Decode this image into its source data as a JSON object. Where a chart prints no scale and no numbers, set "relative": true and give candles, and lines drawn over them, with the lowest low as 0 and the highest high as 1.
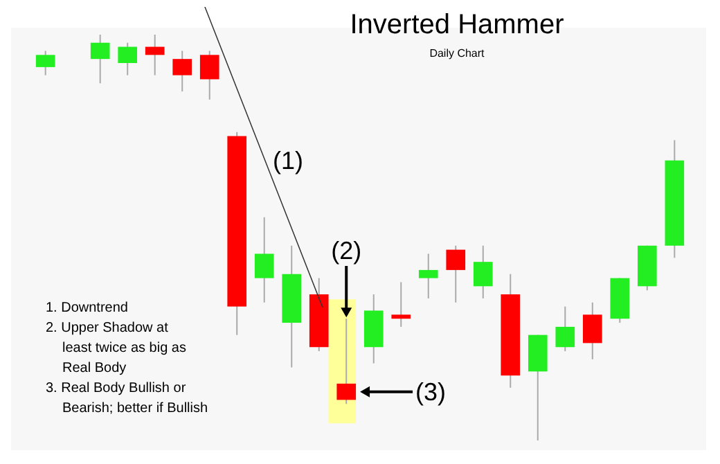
{
  "chart_data": {
    "type": "candlestick",
    "title": "Inverted Hammer",
    "subtitle": "Daily Chart",
    "relative": true,
    "categories": [
      null,
      null,
      null,
      null,
      null,
      null,
      null,
      null,
      null,
      null,
      null,
      null,
      null,
      null,
      null,
      null,
      null,
      null,
      null,
      null,
      null,
      null,
      null,
      null
    ],
    "ohlc": [
      [
        0.92,
        0.96,
        0.9,
        0.95
      ],
      null,
      [
        0.94,
        1.0,
        0.88,
        0.98
      ],
      [
        0.93,
        0.98,
        0.9,
        0.97
      ],
      [
        0.97,
        1.0,
        0.9,
        0.95
      ],
      [
        0.94,
        0.96,
        0.86,
        0.9
      ],
      [
        0.95,
        0.96,
        0.84,
        0.89
      ],
      [
        0.75,
        0.76,
        0.26,
        0.33
      ],
      [
        0.4,
        0.55,
        0.34,
        0.46
      ],
      [
        0.29,
        0.48,
        0.18,
        0.41
      ],
      [
        0.36,
        0.4,
        0.22,
        0.23
      ],
      [
        0.14,
        0.3,
        0.09,
        0.1
      ],
      [
        0.23,
        0.36,
        0.19,
        0.32
      ],
      [
        0.31,
        0.39,
        0.28,
        0.3
      ],
      [
        0.4,
        0.46,
        0.35,
        0.42
      ],
      [
        0.47,
        0.48,
        0.34,
        0.42
      ],
      [
        0.38,
        0.48,
        0.35,
        0.44
      ],
      [
        0.36,
        0.41,
        0.13,
        0.16
      ],
      [
        0.17,
        0.26,
        0.0,
        0.26
      ],
      [
        0.23,
        0.33,
        0.22,
        0.28
      ],
      [
        0.31,
        0.34,
        0.2,
        0.24
      ],
      [
        0.3,
        0.4,
        0.29,
        0.4
      ],
      [
        0.38,
        0.48,
        0.37,
        0.48
      ],
      [
        0.48,
        0.74,
        0.45,
        0.69
      ]
    ],
    "colors": [
      "#22ee22",
      null,
      "#22ee22",
      "#22ee22",
      "#ff0000",
      "#ff0000",
      "#ff0000",
      "#ff0000",
      "#22ee22",
      "#22ee22",
      "#ff0000",
      "#ff0000",
      "#22ee22",
      "#ff0000",
      "#22ee22",
      "#ff0000",
      "#22ee22",
      "#ff0000",
      "#22ee22",
      "#22ee22",
      "#ff0000",
      "#22ee22",
      "#22ee22",
      "#22ee22"
    ],
    "annotations": [
      "(1)",
      "(2)",
      "(3)",
      "1. Downtrend",
      "2. Upper Shadow at least twice as big as Real Body",
      "3. Real Body Bullish or Bearish; better if Bullish"
    ]
  }
}
